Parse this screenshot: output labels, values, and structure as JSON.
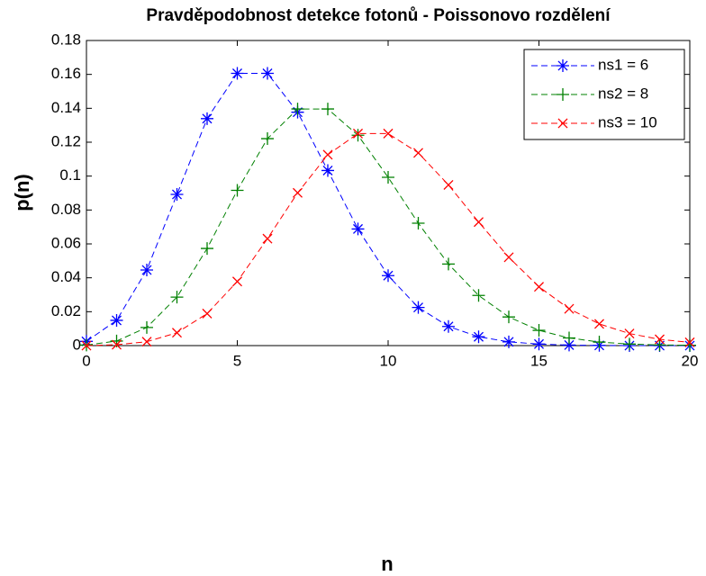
{
  "chart_data": {
    "type": "line",
    "title": "Pravděpodobnost detekce fotonů - Poissonovo rozdělení",
    "x_label": "n",
    "y_label": "p(n)",
    "x": [
      0,
      1,
      2,
      3,
      4,
      5,
      6,
      7,
      8,
      9,
      10,
      11,
      12,
      13,
      14,
      15,
      16,
      17,
      18,
      19,
      20
    ],
    "series": [
      {
        "name": "ns1 = 6",
        "color": "#0000ff",
        "marker": "*",
        "values": [
          0.0025,
          0.0149,
          0.0446,
          0.0892,
          0.1339,
          0.1606,
          0.1606,
          0.1377,
          0.1033,
          0.0688,
          0.0413,
          0.0225,
          0.0113,
          0.0052,
          0.0022,
          0.0009,
          0.0003,
          0.0001,
          0.0,
          0.0,
          0.0
        ]
      },
      {
        "name": "ns2 = 8",
        "color": "#008000",
        "marker": "+",
        "values": [
          0.0003,
          0.0027,
          0.0107,
          0.0286,
          0.0573,
          0.0916,
          0.1221,
          0.1396,
          0.1396,
          0.1241,
          0.0993,
          0.0722,
          0.0481,
          0.0296,
          0.0169,
          0.009,
          0.0045,
          0.0021,
          0.0009,
          0.0004,
          0.0002
        ]
      },
      {
        "name": "ns3 = 10",
        "color": "#ff0000",
        "marker": "x",
        "values": [
          0.0,
          0.0005,
          0.0023,
          0.0076,
          0.0189,
          0.0378,
          0.0631,
          0.0901,
          0.1126,
          0.1251,
          0.1251,
          0.1137,
          0.0948,
          0.0729,
          0.0521,
          0.0347,
          0.0217,
          0.0128,
          0.0071,
          0.0037,
          0.0019
        ]
      }
    ],
    "xlim": [
      0,
      20
    ],
    "xticks": [
      0,
      5,
      10,
      15,
      20
    ],
    "ylim": [
      0,
      0.18
    ],
    "yticks": [
      0,
      0.02,
      0.04,
      0.06,
      0.08,
      0.1,
      0.12,
      0.14,
      0.16,
      0.18
    ],
    "grid": false,
    "legend": "upper right",
    "line_style": "dashed"
  }
}
